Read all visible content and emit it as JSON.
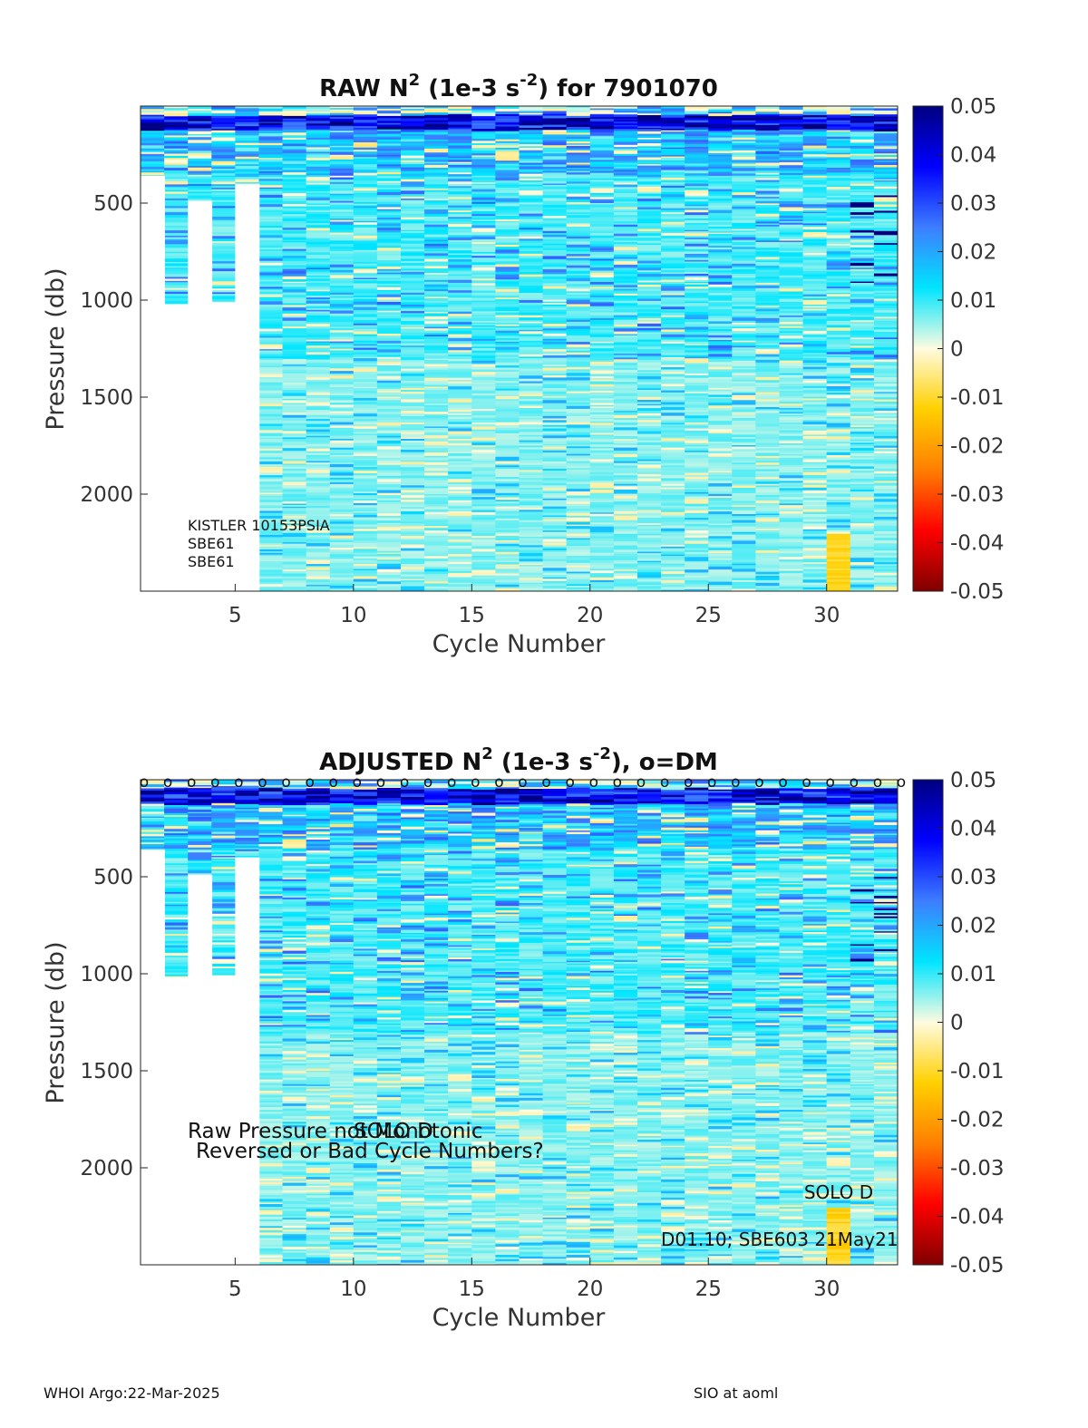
{
  "chart_data": [
    {
      "type": "heatmap",
      "title_prefix": "RAW N",
      "title_sup1": "2",
      "title_mid": " (1e-3 s",
      "title_sup2": "-2",
      "title_suffix": ") for 7901070",
      "xlabel": "Cycle Number",
      "ylabel": "Pressure (db)",
      "xlim": [
        1,
        33
      ],
      "ylim": [
        0,
        2500
      ],
      "y_reversed": true,
      "xticks": [
        5,
        10,
        15,
        20,
        25,
        30
      ],
      "yticks": [
        500,
        1000,
        1500,
        2000
      ],
      "colorbar": {
        "colormap": "jet-reversed",
        "clim": [
          -0.05,
          0.05
        ],
        "ticks": [
          "0.05",
          "0.04",
          "0.03",
          "0.02",
          "0.01",
          "0",
          "-0.01",
          "-0.02",
          "-0.03",
          "-0.04",
          "-0.05"
        ]
      },
      "profiles": [
        {
          "cycle": 1,
          "max_pressure": 360
        },
        {
          "cycle": 2,
          "max_pressure": 1020
        },
        {
          "cycle": 3,
          "max_pressure": 490
        },
        {
          "cycle": 4,
          "max_pressure": 1010
        },
        {
          "cycle": 5,
          "max_pressure": 400
        },
        {
          "cycle": 6,
          "max_pressure": 2500
        },
        {
          "cycle": 30,
          "max_pressure": 2500,
          "anomaly": "positive values 2200-2500"
        }
      ],
      "annotations": [
        "KISTLER 10153PSIA",
        "SBE61",
        "SBE61"
      ]
    },
    {
      "type": "heatmap",
      "title_prefix": "ADJUSTED N",
      "title_sup1": "2",
      "title_mid": " (1e-3 s",
      "title_sup2": "-2",
      "title_suffix": "), o=DM",
      "xlabel": "Cycle Number",
      "ylabel": "Pressure (db)",
      "xlim": [
        1,
        33
      ],
      "ylim": [
        0,
        2500
      ],
      "y_reversed": true,
      "xticks": [
        5,
        10,
        15,
        20,
        25,
        30
      ],
      "yticks": [
        500,
        1000,
        1500,
        2000
      ],
      "colorbar": {
        "colormap": "jet-reversed",
        "clim": [
          -0.05,
          0.05
        ],
        "ticks": [
          "0.05",
          "0.04",
          "0.03",
          "0.02",
          "0.01",
          "0",
          "-0.01",
          "-0.02",
          "-0.03",
          "-0.04",
          "-0.05"
        ]
      },
      "dm_marker": "o",
      "dm_cycles": [
        1,
        2,
        3,
        4,
        5,
        6,
        7,
        8,
        9,
        10,
        11,
        12,
        13,
        14,
        15,
        16,
        17,
        18,
        19,
        20,
        21,
        22,
        23,
        24,
        25,
        26,
        27,
        28,
        29,
        30,
        31,
        32,
        33
      ],
      "annotations": {
        "line1a": "Raw Pressure not Monotonic",
        "line1b": "SOLO D",
        "line2": "Reversed or Bad Cycle Numbers?",
        "solo": "SOLO D",
        "firmware": "D01.10; SBE603 21May21"
      }
    }
  ],
  "footer": {
    "left": "WHOI Argo:22-Mar-2025",
    "right": "SIO at aoml"
  }
}
